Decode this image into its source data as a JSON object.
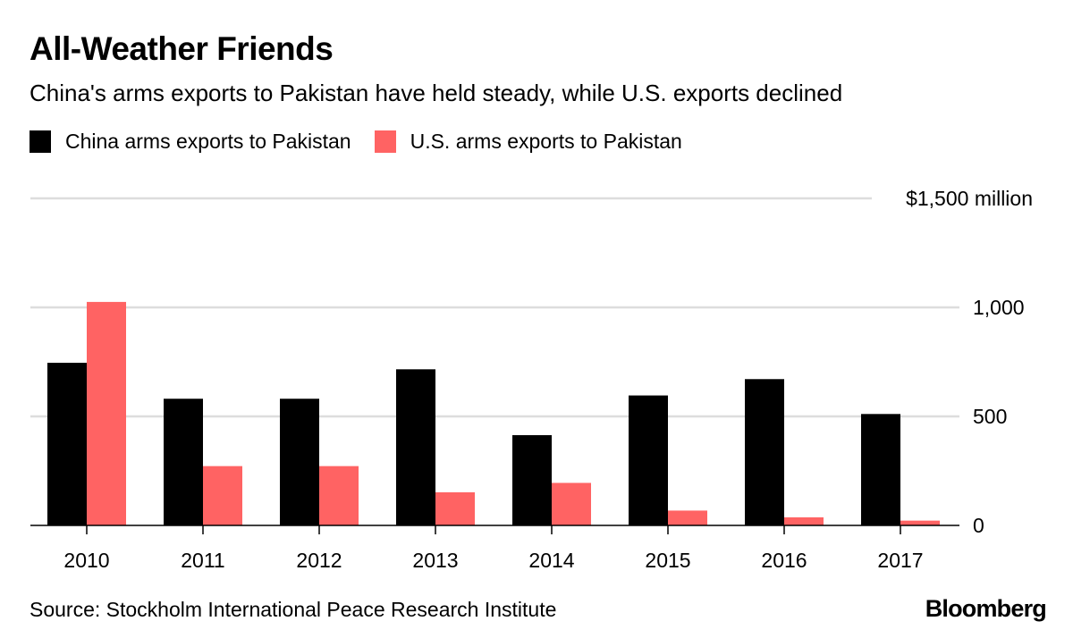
{
  "title": "All-Weather Friends",
  "subtitle": "China's arms exports to Pakistan have held steady, while U.S. exports declined",
  "source": "Source: Stockholm International Peace Research Institute",
  "brand": "Bloomberg",
  "colors": {
    "china": "#000000",
    "us": "#ff6363",
    "grid": "#dddddd",
    "axis": "#000000"
  },
  "chart_data": {
    "type": "bar",
    "title": "All-Weather Friends",
    "subtitle": "China's arms exports to Pakistan have held steady, while U.S. exports declined",
    "xlabel": "",
    "ylabel": "$ million",
    "categories": [
      "2010",
      "2011",
      "2012",
      "2013",
      "2014",
      "2015",
      "2016",
      "2017"
    ],
    "series": [
      {
        "name": "China arms exports to Pakistan",
        "color": "#000000",
        "values": [
          746,
          581,
          581,
          716,
          414,
          596,
          671,
          511
        ]
      },
      {
        "name": "U.S. arms exports to Pakistan",
        "color": "#ff6363",
        "values": [
          1025,
          272,
          272,
          152,
          195,
          68,
          37,
          22
        ]
      }
    ],
    "ylim": [
      0,
      1500
    ],
    "yticks": [
      0,
      500,
      1000,
      1500
    ],
    "ytick_labels": [
      "0",
      "500",
      "1,000",
      "$1,500 million"
    ],
    "grid": true,
    "legend": "top-left",
    "yaxis_side": "right"
  }
}
